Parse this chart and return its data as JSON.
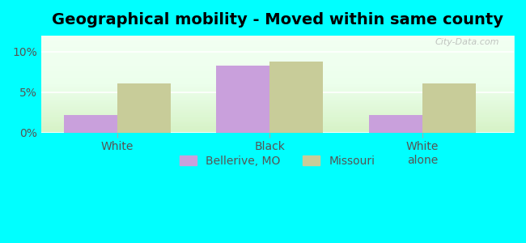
{
  "title": "Geographical mobility - Moved within same county",
  "categories": [
    "White",
    "Black",
    "White\nalone"
  ],
  "bellerive_values": [
    2.2,
    8.3,
    2.2
  ],
  "missouri_values": [
    6.1,
    8.8,
    6.1
  ],
  "bellerive_color": "#c9a0dc",
  "missouri_color": "#c8cc99",
  "ylim": [
    0,
    12
  ],
  "yticks": [
    0,
    5,
    10
  ],
  "ytick_labels": [
    "0%",
    "5%",
    "10%"
  ],
  "background_color": "#e0ffe0",
  "outer_background": "#00ffff",
  "legend_labels": [
    "Bellerive, MO",
    "Missouri"
  ],
  "bar_width": 0.35,
  "group_positions": [
    1,
    2,
    3
  ],
  "title_fontsize": 14,
  "axis_label_fontsize": 10,
  "legend_fontsize": 10,
  "watermark": "City-Data.com"
}
